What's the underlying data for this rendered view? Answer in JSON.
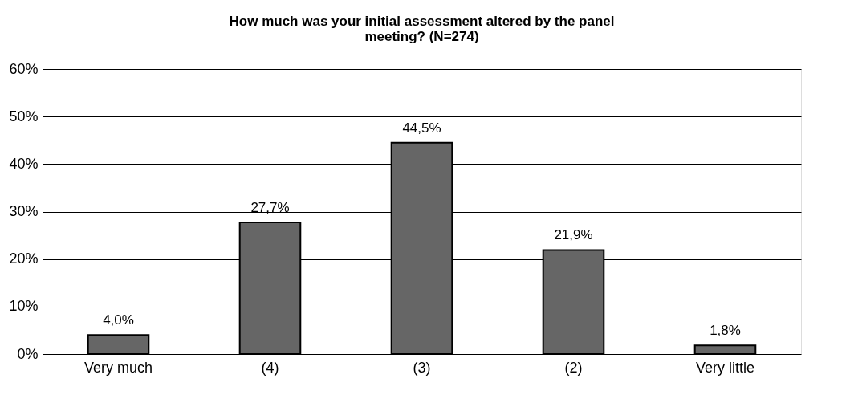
{
  "chart_data": {
    "type": "bar",
    "title": "How much was your initial assessment altered by the panel meeting? (N=274)",
    "categories": [
      "Very much",
      "(4)",
      "(3)",
      "(2)",
      "Very little"
    ],
    "values": [
      4.0,
      27.7,
      44.5,
      21.9,
      1.8
    ],
    "value_labels": [
      "4,0%",
      "27,7%",
      "44,5%",
      "21,9%",
      "1,8%"
    ],
    "color": "#666666",
    "ylim": [
      0,
      60
    ],
    "yticks": [
      {
        "value": 0,
        "label": "0%"
      },
      {
        "value": 10,
        "label": "10%"
      },
      {
        "value": 20,
        "label": "20%"
      },
      {
        "value": 30,
        "label": "30%"
      },
      {
        "value": 40,
        "label": "40%"
      },
      {
        "value": 50,
        "label": "50%"
      },
      {
        "value": 60,
        "label": "60%"
      }
    ],
    "grid": "y"
  }
}
